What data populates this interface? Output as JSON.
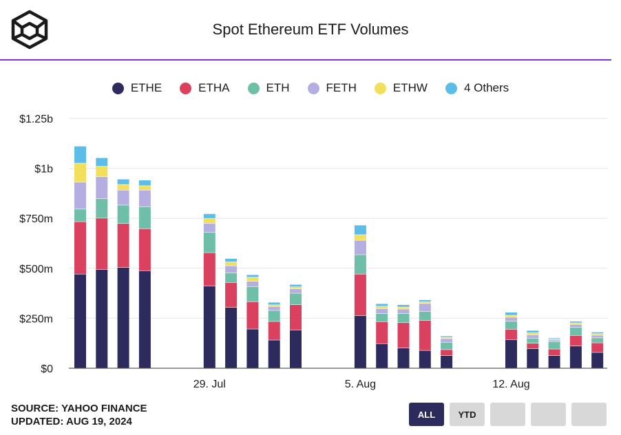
{
  "header": {
    "title": "Spot Ethereum ETF Volumes",
    "logo_icon": "cube-logo-icon"
  },
  "footer": {
    "source": "SOURCE: YAHOO FINANCE",
    "updated": "UPDATED: AUG 19, 2024"
  },
  "range_buttons": [
    {
      "label": "ALL",
      "active": true
    },
    {
      "label": "YTD",
      "active": false
    },
    {
      "label": "",
      "active": false
    },
    {
      "label": "",
      "active": false
    },
    {
      "label": "",
      "active": false
    }
  ],
  "chart_data": {
    "type": "bar",
    "stacked": true,
    "title": "Spot Ethereum ETF Volumes",
    "xlabel": "",
    "ylabel": "",
    "ylim": [
      0,
      1250
    ],
    "y_unit": "USD millions",
    "y_ticks": [
      {
        "value": 0,
        "label": "$0"
      },
      {
        "value": 250,
        "label": "$250m"
      },
      {
        "value": 500,
        "label": "$500m"
      },
      {
        "value": 750,
        "label": "$750m"
      },
      {
        "value": 1000,
        "label": "$1b"
      },
      {
        "value": 1250,
        "label": "$1.25b"
      }
    ],
    "x_tick_labels": [
      {
        "label": "29. Jul",
        "at_date": "Jul 29"
      },
      {
        "label": "5. Aug",
        "at_date": "Aug 5"
      },
      {
        "label": "12. Aug",
        "at_date": "Aug 12"
      }
    ],
    "legend_position": "top-center",
    "grid": true,
    "categories": [
      "Jul 23",
      "Jul 24",
      "Jul 25",
      "Jul 26",
      "Jul 29",
      "Jul 30",
      "Jul 31",
      "Aug 1",
      "Aug 2",
      "Aug 5",
      "Aug 6",
      "Aug 7",
      "Aug 8",
      "Aug 9",
      "Aug 12",
      "Aug 13",
      "Aug 14",
      "Aug 15",
      "Aug 16"
    ],
    "series": [
      {
        "name": "ETHE",
        "color": "#2d2a5e",
        "values": [
          470,
          493,
          503,
          487,
          410,
          303,
          195,
          140,
          190,
          262,
          122,
          100,
          88,
          62,
          142,
          97,
          62,
          110,
          78
        ]
      },
      {
        "name": "ETHA",
        "color": "#d9415f",
        "values": [
          262,
          257,
          220,
          210,
          167,
          125,
          137,
          93,
          127,
          208,
          110,
          127,
          150,
          30,
          52,
          27,
          33,
          53,
          48
        ]
      },
      {
        "name": "ETH",
        "color": "#6fbfa8",
        "values": [
          63,
          97,
          92,
          110,
          102,
          48,
          75,
          55,
          57,
          97,
          40,
          45,
          45,
          37,
          40,
          25,
          37,
          40,
          25
        ]
      },
      {
        "name": "FETH",
        "color": "#b5aee0",
        "values": [
          135,
          110,
          75,
          83,
          45,
          35,
          27,
          20,
          22,
          72,
          25,
          23,
          40,
          18,
          20,
          17,
          8,
          15,
          13
        ]
      },
      {
        "name": "ETHW",
        "color": "#f2e05c",
        "values": [
          95,
          52,
          28,
          22,
          25,
          20,
          20,
          8,
          10,
          28,
          12,
          10,
          8,
          6,
          10,
          10,
          4,
          8,
          8
        ]
      },
      {
        "name": "4 Others",
        "color": "#5bbde8",
        "values": [
          85,
          43,
          27,
          28,
          23,
          17,
          13,
          13,
          12,
          48,
          13,
          12,
          10,
          7,
          15,
          12,
          6,
          8,
          8
        ]
      }
    ]
  }
}
